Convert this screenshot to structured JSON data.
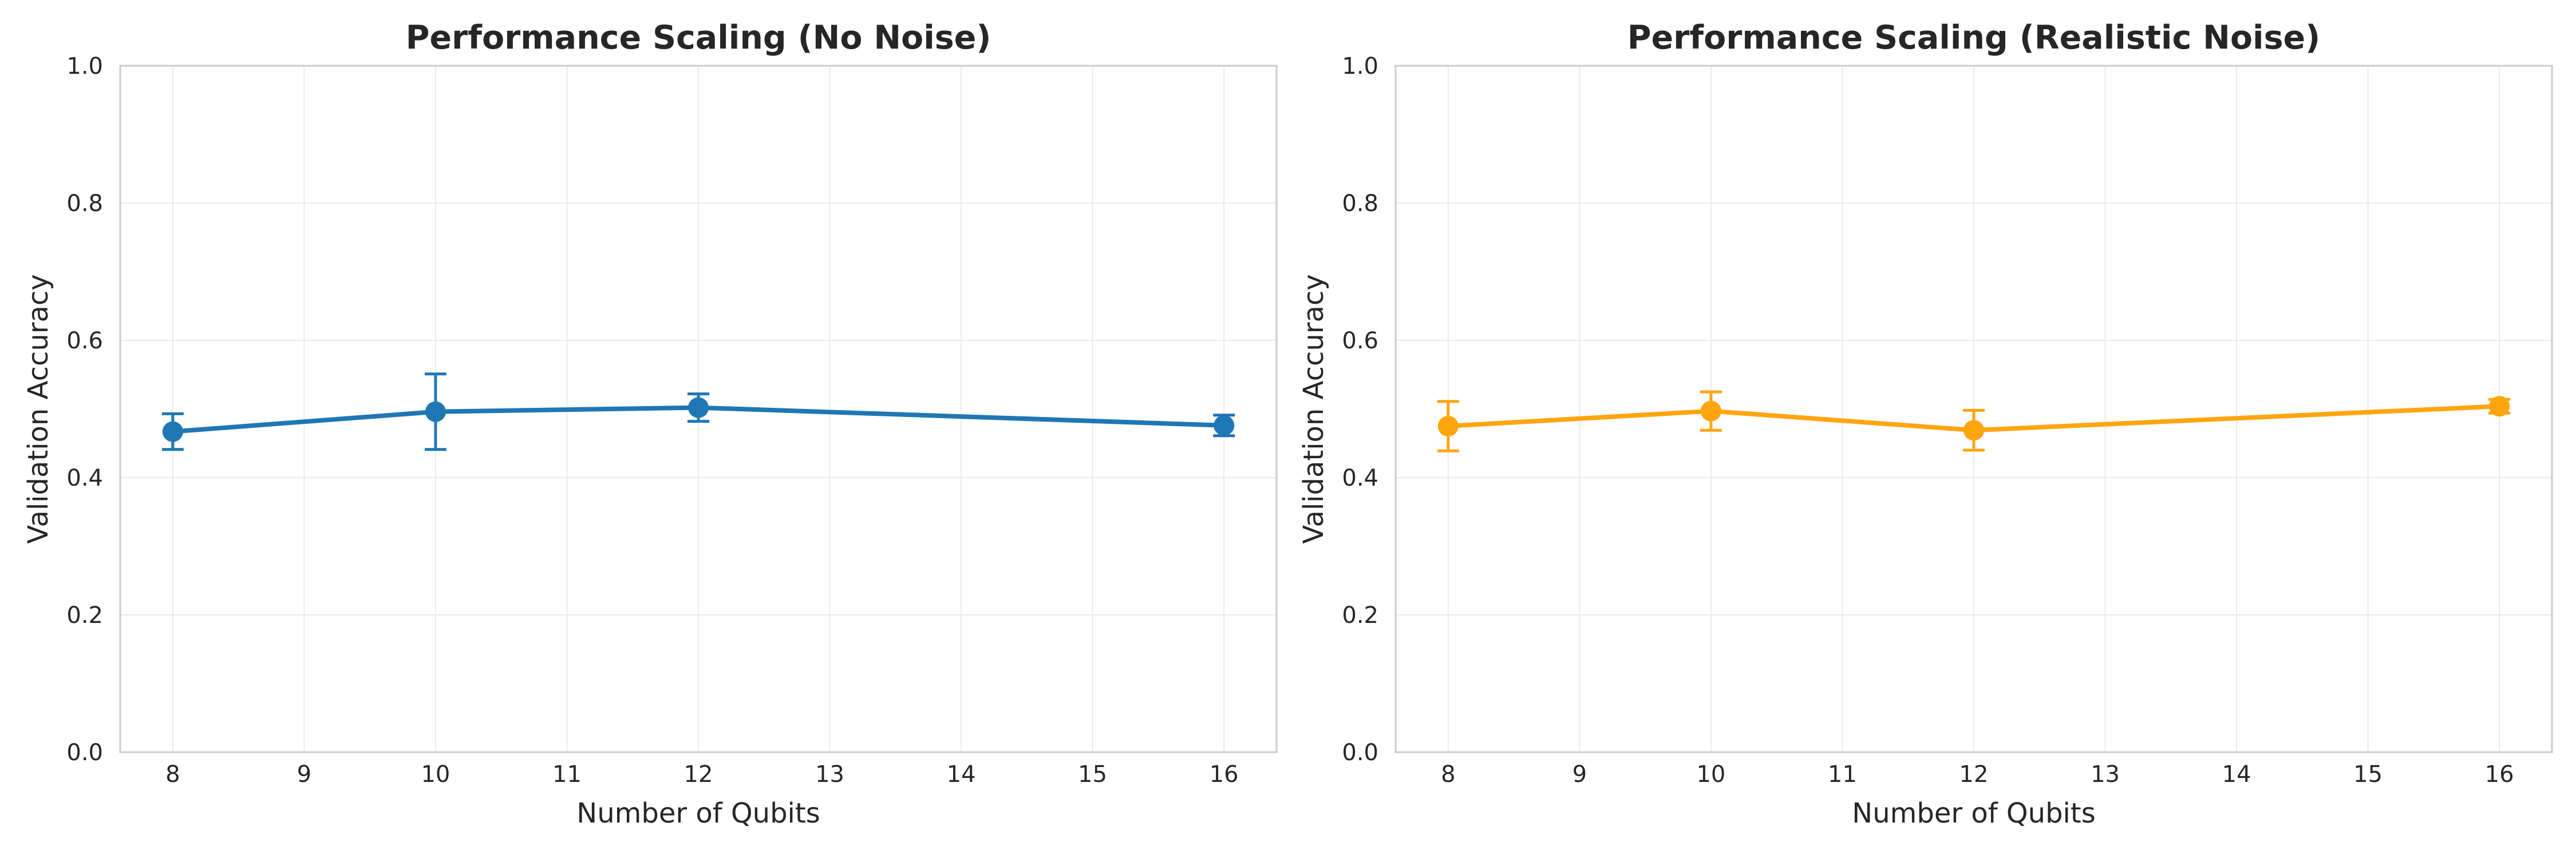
{
  "chart_data": [
    {
      "type": "line",
      "title": "Performance Scaling (No Noise)",
      "xlabel": "Number of Qubits",
      "ylabel": "Validation Accuracy",
      "xlim": [
        7.6,
        16.4
      ],
      "ylim": [
        0.0,
        1.0
      ],
      "xticks": [
        8,
        9,
        10,
        11,
        12,
        13,
        14,
        15,
        16
      ],
      "yticks": [
        0.0,
        0.2,
        0.4,
        0.6,
        0.8,
        1.0
      ],
      "ytick_labels": [
        "0.0",
        "0.2",
        "0.4",
        "0.6",
        "0.8",
        "1.0"
      ],
      "grid": true,
      "series": [
        {
          "name": "No Noise",
          "color": "#1f77b4",
          "x": [
            8,
            10,
            12,
            16
          ],
          "y": [
            0.467,
            0.496,
            0.502,
            0.476
          ],
          "yerr": [
            0.026,
            0.055,
            0.02,
            0.015
          ]
        }
      ]
    },
    {
      "type": "line",
      "title": "Performance Scaling (Realistic Noise)",
      "xlabel": "Number of Qubits",
      "ylabel": "Validation Accuracy",
      "xlim": [
        7.6,
        16.4
      ],
      "ylim": [
        0.0,
        1.0
      ],
      "xticks": [
        8,
        9,
        10,
        11,
        12,
        13,
        14,
        15,
        16
      ],
      "yticks": [
        0.0,
        0.2,
        0.4,
        0.6,
        0.8,
        1.0
      ],
      "ytick_labels": [
        "0.0",
        "0.2",
        "0.4",
        "0.6",
        "0.8",
        "1.0"
      ],
      "grid": true,
      "series": [
        {
          "name": "Realistic Noise",
          "color": "#ffa50f",
          "x": [
            8,
            10,
            12,
            16
          ],
          "y": [
            0.475,
            0.497,
            0.469,
            0.504
          ],
          "yerr": [
            0.036,
            0.028,
            0.029,
            0.01
          ]
        }
      ]
    }
  ]
}
